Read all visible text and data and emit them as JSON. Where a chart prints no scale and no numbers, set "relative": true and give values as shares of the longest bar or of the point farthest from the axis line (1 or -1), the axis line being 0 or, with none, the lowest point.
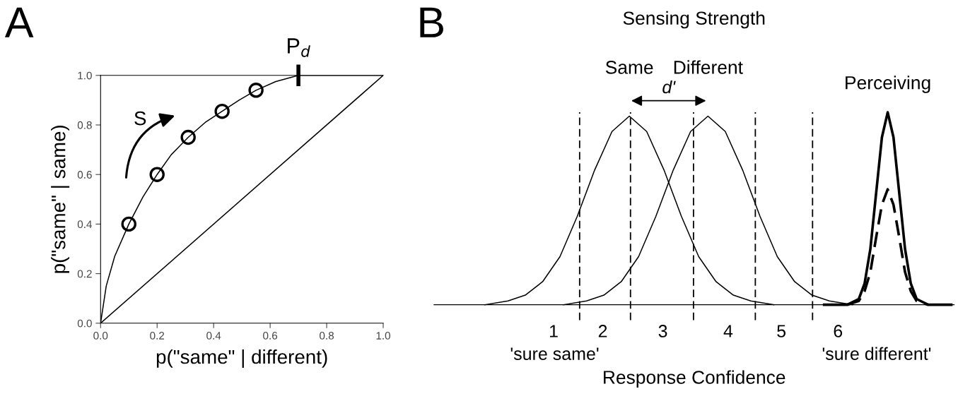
{
  "chart_data": [
    {
      "type": "line",
      "xlabel": "p(\"same\" | different)",
      "ylabel": "p(\"same\" | same)",
      "xlim": [
        0,
        1
      ],
      "ylim": [
        0,
        1
      ],
      "xticks": [
        {
          "value": 0,
          "label": "0.0"
        },
        {
          "value": 0.2,
          "label": "0.2"
        },
        {
          "value": 0.4,
          "label": "0.4"
        },
        {
          "value": 0.6,
          "label": "0.6"
        },
        {
          "value": 0.8,
          "label": "0.8"
        },
        {
          "value": 1,
          "label": "1.0"
        }
      ],
      "yticks": [
        {
          "value": 0,
          "label": "0.0"
        },
        {
          "value": 0.2,
          "label": "0.2"
        },
        {
          "value": 0.4,
          "label": "0.4"
        },
        {
          "value": 0.6,
          "label": "0.6"
        },
        {
          "value": 0.8,
          "label": "0.8"
        },
        {
          "value": 1,
          "label": "1.0"
        }
      ],
      "series": [
        {
          "type": "line",
          "color": "#000000",
          "x": [
            0,
            0.02,
            0.05,
            0.1,
            0.15,
            0.2,
            0.25,
            0.31,
            0.37,
            0.43,
            0.49,
            0.55,
            0.62,
            0.7,
            1.0
          ],
          "values": [
            0,
            0.15,
            0.27,
            0.4,
            0.51,
            0.6,
            0.68,
            0.75,
            0.81,
            0.855,
            0.9,
            0.94,
            0.975,
            1.0,
            1.0
          ]
        },
        {
          "type": "line",
          "color": "#000000",
          "x": [
            0,
            1
          ],
          "values": [
            0,
            1
          ]
        },
        {
          "type": "scatter",
          "color": "#000000",
          "marker": "circle",
          "x": [
            0.1,
            0.2,
            0.31,
            0.43,
            0.55
          ],
          "values": [
            0.4,
            0.6,
            0.75,
            0.855,
            0.94
          ]
        }
      ],
      "annotations": [
        "A",
        "S",
        {
          "text": "P$_{d}$",
          "x": 0.7,
          "y": 1.0
        }
      ]
    },
    {
      "type": "line",
      "relative": true,
      "title": "Sensing Strength",
      "xlabel": "Response Confidence",
      "tick_labels": "x",
      "xlim": [
        -1,
        8
      ],
      "xticks": [
        {
          "value": 1.07,
          "label": "1"
        },
        {
          "value": 1.92,
          "label": "2"
        },
        {
          "value": 2.96,
          "label": "3"
        },
        {
          "value": 4.09,
          "label": "4"
        },
        {
          "value": 5.01,
          "label": "5"
        },
        {
          "value": 5.99,
          "label": "6"
        }
      ],
      "series": [
        {
          "name": "Same",
          "color": "#000000",
          "line_style": "solid",
          "x": [
            -0.12,
            0.28,
            0.58,
            0.88,
            1.18,
            1.48,
            1.78,
            2.08,
            2.38,
            2.68,
            2.98,
            3.28,
            3.58,
            3.88,
            4.18,
            4.48,
            4.88
          ],
          "values": [
            0,
            0.02,
            0.05,
            0.12,
            0.25,
            0.46,
            0.7,
            0.9,
            0.98,
            0.9,
            0.7,
            0.46,
            0.25,
            0.12,
            0.05,
            0.02,
            0
          ]
        },
        {
          "name": "Different",
          "color": "#000000",
          "line_style": "solid",
          "x": [
            1.24,
            1.64,
            1.94,
            2.24,
            2.54,
            2.84,
            3.14,
            3.44,
            3.74,
            4.04,
            4.34,
            4.64,
            4.94,
            5.24,
            5.54,
            5.84,
            6.24
          ],
          "values": [
            0,
            0.02,
            0.05,
            0.12,
            0.25,
            0.46,
            0.7,
            0.9,
            0.98,
            0.9,
            0.7,
            0.46,
            0.25,
            0.12,
            0.05,
            0.02,
            0
          ]
        },
        {
          "name": "Perceiving",
          "color": "#000000",
          "line_style": "solid",
          "x": [
            5.75,
            6.15,
            6.35,
            6.45,
            6.55,
            6.65,
            6.75,
            6.85,
            6.95,
            7.05,
            7.15,
            7.25,
            7.35,
            7.55,
            7.95
          ],
          "values": [
            0,
            0,
            0.03,
            0.11,
            0.29,
            0.58,
            0.87,
            1.0,
            0.87,
            0.58,
            0.29,
            0.11,
            0.03,
            0,
            0
          ]
        },
        {
          "color": "#000000",
          "line_style": "dashed",
          "x": [
            6.15,
            6.35,
            6.45,
            6.55,
            6.65,
            6.75,
            6.85,
            6.95,
            7.05,
            7.15,
            7.25,
            7.35,
            7.55
          ],
          "values": [
            0,
            0.02,
            0.07,
            0.17,
            0.35,
            0.52,
            0.6,
            0.52,
            0.35,
            0.17,
            0.07,
            0.02,
            0
          ]
        }
      ],
      "ref_lines": [
        {
          "axis": "x",
          "value": 1.52,
          "line_style": "dashed",
          "color": "#000000"
        },
        {
          "axis": "x",
          "value": 2.4,
          "line_style": "dashed",
          "color": "#000000"
        },
        {
          "axis": "x",
          "value": 3.49,
          "line_style": "dashed",
          "color": "#000000"
        },
        {
          "axis": "x",
          "value": 4.56,
          "line_style": "dashed",
          "color": "#000000"
        },
        {
          "axis": "x",
          "value": 5.55,
          "line_style": "dashed",
          "color": "#000000"
        }
      ],
      "annotations": [
        "B",
        "'sure same'",
        "'sure different'",
        "d'"
      ]
    }
  ]
}
